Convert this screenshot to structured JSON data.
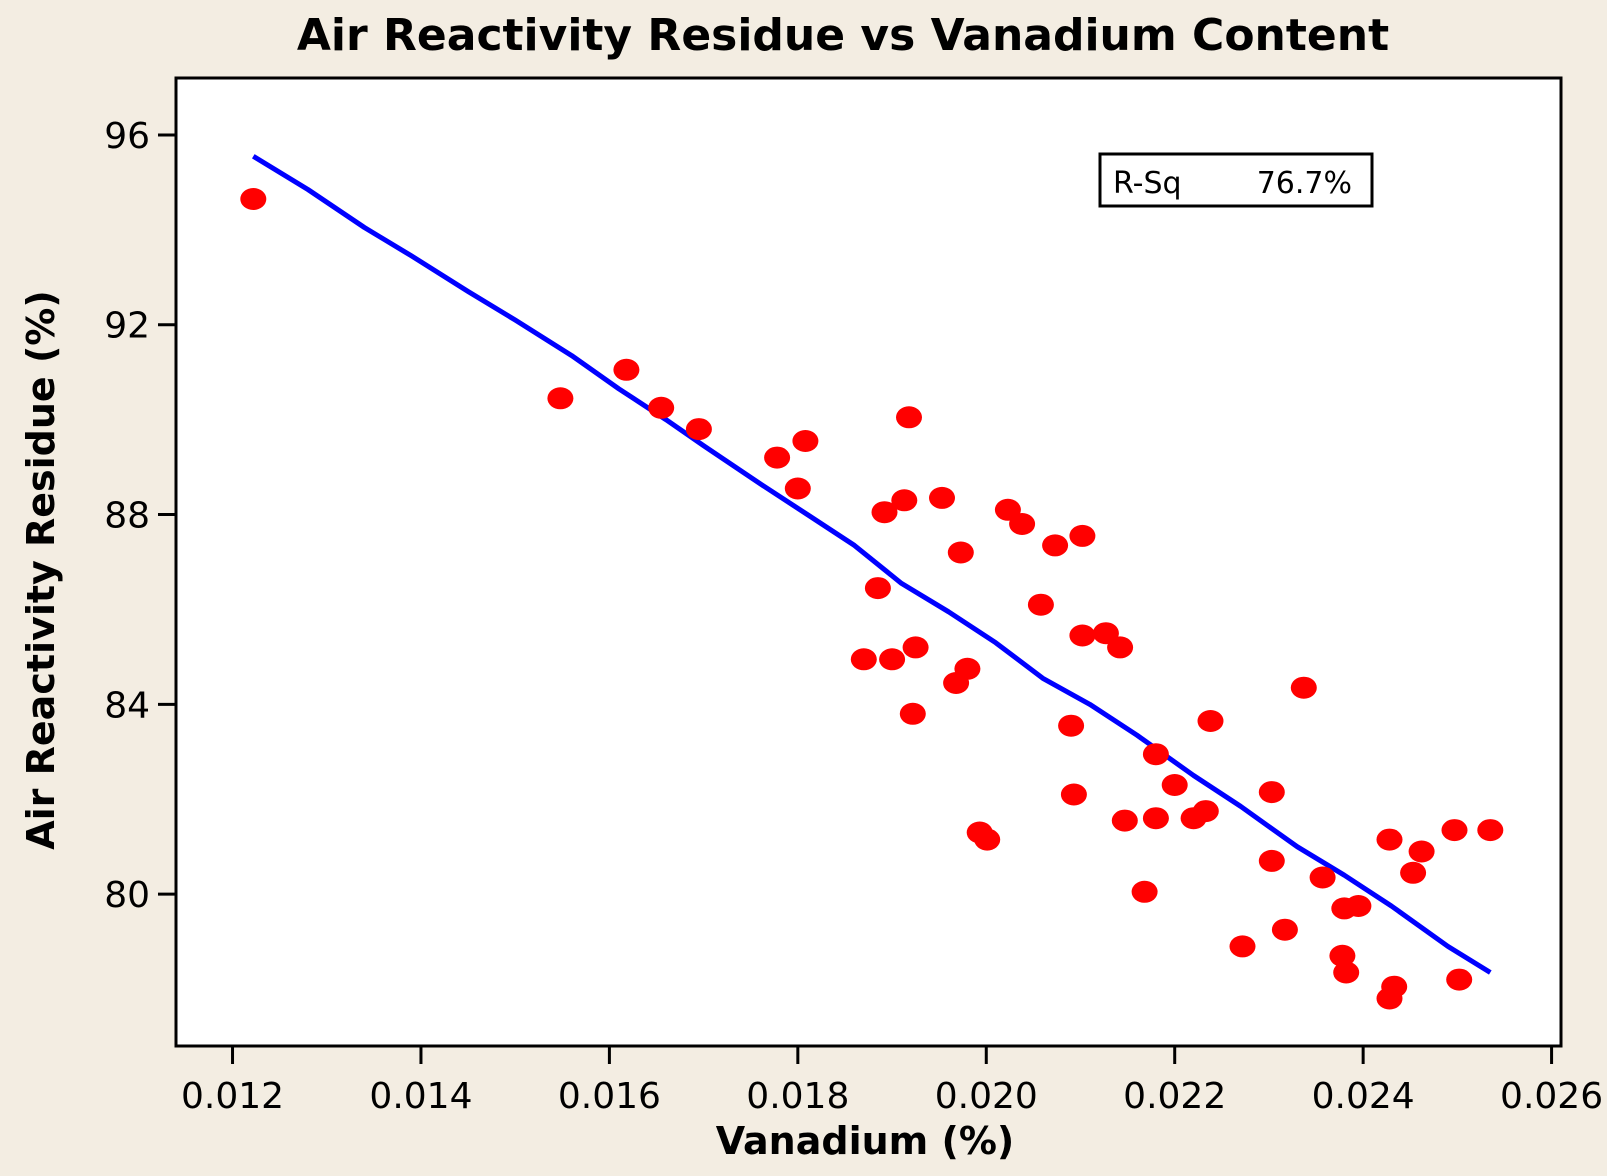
{
  "chart_data": {
    "type": "scatter",
    "title": "Air Reactivity Residue vs Vanadium Content",
    "xlabel": "Vanadium (%)",
    "ylabel": "Air Reactivity Residue (%)",
    "xlim": [
      0.0114,
      0.0261
    ],
    "ylim": [
      76.8,
      97.2
    ],
    "xticks": [
      0.012,
      0.014,
      0.016,
      0.018,
      0.02,
      0.022,
      0.024,
      0.026
    ],
    "xtick_labels": [
      "0.012",
      "0.014",
      "0.016",
      "0.018",
      "0.020",
      "0.022",
      "0.024",
      "0.026"
    ],
    "yticks": [
      80,
      84,
      88,
      92,
      96
    ],
    "ytick_labels": [
      "80",
      "84",
      "88",
      "92",
      "96"
    ],
    "grid": false,
    "legend": {
      "label": "R-Sq",
      "value": "76.7%",
      "placement": "top-right"
    },
    "colors": {
      "points": "#ff0000",
      "fit_line": "#0000ff",
      "plot_bg": "#ffffff",
      "page_bg": "#f3ede2"
    },
    "series": [
      {
        "name": "observations",
        "points": [
          [
            0.01222,
            94.65
          ],
          [
            0.01548,
            90.45
          ],
          [
            0.01618,
            91.05
          ],
          [
            0.01655,
            90.25
          ],
          [
            0.01695,
            89.8
          ],
          [
            0.01778,
            89.2
          ],
          [
            0.01808,
            89.55
          ],
          [
            0.018,
            88.55
          ],
          [
            0.0187,
            84.95
          ],
          [
            0.01885,
            86.45
          ],
          [
            0.01892,
            88.05
          ],
          [
            0.019,
            84.95
          ],
          [
            0.01913,
            88.3
          ],
          [
            0.01918,
            90.05
          ],
          [
            0.01922,
            83.8
          ],
          [
            0.01925,
            85.2
          ],
          [
            0.01953,
            88.35
          ],
          [
            0.01968,
            84.45
          ],
          [
            0.01973,
            87.2
          ],
          [
            0.0198,
            84.75
          ],
          [
            0.01993,
            81.3
          ],
          [
            0.02001,
            81.15
          ],
          [
            0.02023,
            88.1
          ],
          [
            0.02038,
            87.8
          ],
          [
            0.02058,
            86.1
          ],
          [
            0.02073,
            87.35
          ],
          [
            0.0209,
            83.55
          ],
          [
            0.02093,
            82.1
          ],
          [
            0.02102,
            85.45
          ],
          [
            0.02102,
            87.55
          ],
          [
            0.02127,
            85.5
          ],
          [
            0.02142,
            85.2
          ],
          [
            0.02147,
            81.55
          ],
          [
            0.02168,
            80.05
          ],
          [
            0.0218,
            81.6
          ],
          [
            0.0218,
            82.95
          ],
          [
            0.022,
            82.3
          ],
          [
            0.0222,
            81.6
          ],
          [
            0.02233,
            81.75
          ],
          [
            0.02238,
            83.65
          ],
          [
            0.02272,
            78.9
          ],
          [
            0.02303,
            80.7
          ],
          [
            0.02303,
            82.15
          ],
          [
            0.02317,
            79.25
          ],
          [
            0.02337,
            84.35
          ],
          [
            0.02357,
            80.35
          ],
          [
            0.02378,
            78.7
          ],
          [
            0.0238,
            79.7
          ],
          [
            0.02382,
            78.35
          ],
          [
            0.02395,
            79.75
          ],
          [
            0.02428,
            81.15
          ],
          [
            0.02428,
            77.8
          ],
          [
            0.02433,
            78.05
          ],
          [
            0.02453,
            80.45
          ],
          [
            0.02462,
            80.9
          ],
          [
            0.02497,
            81.35
          ],
          [
            0.02502,
            78.2
          ],
          [
            0.02535,
            81.35
          ]
        ]
      },
      {
        "name": "fitted-line",
        "points": [
          [
            0.01222,
            95.55
          ],
          [
            0.0128,
            94.85
          ],
          [
            0.0134,
            94.05
          ],
          [
            0.0139,
            93.45
          ],
          [
            0.0145,
            92.7
          ],
          [
            0.015,
            92.1
          ],
          [
            0.0156,
            91.35
          ],
          [
            0.0161,
            90.65
          ],
          [
            0.0166,
            90.0
          ],
          [
            0.017,
            89.45
          ],
          [
            0.0176,
            88.65
          ],
          [
            0.0181,
            88.0
          ],
          [
            0.0186,
            87.35
          ],
          [
            0.0191,
            86.55
          ],
          [
            0.0196,
            85.95
          ],
          [
            0.0201,
            85.3
          ],
          [
            0.0206,
            84.55
          ],
          [
            0.0211,
            84.0
          ],
          [
            0.0216,
            83.35
          ],
          [
            0.0222,
            82.5
          ],
          [
            0.0227,
            81.85
          ],
          [
            0.0233,
            81.0
          ],
          [
            0.0238,
            80.4
          ],
          [
            0.0243,
            79.75
          ],
          [
            0.0249,
            78.9
          ],
          [
            0.02535,
            78.35
          ]
        ]
      }
    ]
  }
}
